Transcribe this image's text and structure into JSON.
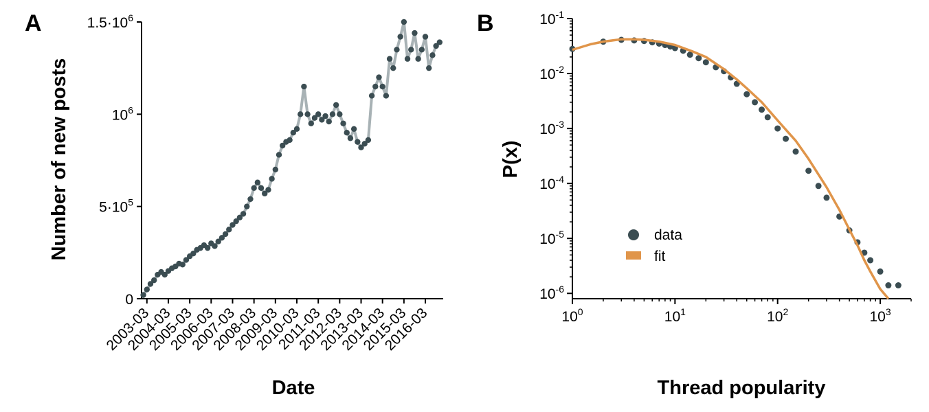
{
  "colors": {
    "marker": "#3b4d52",
    "line": "#a8b2b5",
    "fit": "#e0954a",
    "axis": "#000000"
  },
  "chart_data": [
    {
      "panel": "A",
      "type": "line",
      "xlabel": "Date",
      "ylabel": "Number of new posts",
      "ylim": [
        0,
        1500000
      ],
      "yticks": [
        {
          "value": 0,
          "base": "0",
          "exp": ""
        },
        {
          "value": 500000,
          "base": "5·10",
          "exp": "5"
        },
        {
          "value": 1000000,
          "base": "10",
          "exp": "6"
        },
        {
          "value": 1500000,
          "base": "1.5·10",
          "exp": "6"
        }
      ],
      "xlim": [
        "2002-12",
        "2017-01"
      ],
      "xtick_labels": [
        "2003-03",
        "2004-03",
        "2005-03",
        "2006-03",
        "2007-03",
        "2008-03",
        "2009-03",
        "2010-03",
        "2011-03",
        "2012-03",
        "2013-03",
        "2014-03",
        "2015-03",
        "2016-03"
      ],
      "series": [
        {
          "x": [
            "2003-01",
            "2003-03",
            "2003-05",
            "2003-07",
            "2003-09",
            "2003-11",
            "2004-01",
            "2004-03",
            "2004-05",
            "2004-07",
            "2004-09",
            "2004-11",
            "2005-01",
            "2005-03",
            "2005-05",
            "2005-07",
            "2005-09",
            "2005-11",
            "2006-01",
            "2006-03",
            "2006-05",
            "2006-07",
            "2006-09",
            "2006-11",
            "2007-01",
            "2007-03",
            "2007-05",
            "2007-07",
            "2007-09",
            "2007-11",
            "2008-01",
            "2008-03",
            "2008-05",
            "2008-07",
            "2008-09",
            "2008-11",
            "2009-01",
            "2009-03",
            "2009-05",
            "2009-07",
            "2009-09",
            "2009-11",
            "2010-01",
            "2010-03",
            "2010-05",
            "2010-07",
            "2010-09",
            "2010-11",
            "2011-01",
            "2011-03",
            "2011-05",
            "2011-07",
            "2011-09",
            "2011-11",
            "2012-01",
            "2012-03",
            "2012-05",
            "2012-07",
            "2012-09",
            "2012-11",
            "2013-01",
            "2013-03",
            "2013-05",
            "2013-07",
            "2013-09",
            "2013-11",
            "2014-01",
            "2014-03",
            "2014-05",
            "2014-07",
            "2014-09",
            "2014-11",
            "2015-01",
            "2015-03",
            "2015-05",
            "2015-07",
            "2015-09",
            "2015-11",
            "2016-01",
            "2016-03",
            "2016-05",
            "2016-07",
            "2016-09",
            "2016-11"
          ],
          "values": [
            20000,
            50000,
            80000,
            100000,
            130000,
            145000,
            130000,
            150000,
            165000,
            175000,
            190000,
            185000,
            210000,
            230000,
            245000,
            265000,
            275000,
            290000,
            275000,
            300000,
            285000,
            310000,
            330000,
            350000,
            375000,
            400000,
            420000,
            440000,
            460000,
            500000,
            540000,
            600000,
            630000,
            600000,
            570000,
            590000,
            650000,
            700000,
            780000,
            830000,
            850000,
            860000,
            900000,
            920000,
            1000000,
            1150000,
            1000000,
            950000,
            980000,
            1000000,
            970000,
            990000,
            960000,
            1000000,
            1050000,
            1000000,
            950000,
            900000,
            870000,
            920000,
            850000,
            820000,
            840000,
            860000,
            1100000,
            1150000,
            1200000,
            1150000,
            1100000,
            1300000,
            1250000,
            1350000,
            1420000,
            1500000,
            1300000,
            1350000,
            1440000,
            1300000,
            1350000,
            1420000,
            1250000,
            1320000,
            1370000,
            1390000
          ]
        }
      ]
    },
    {
      "panel": "B",
      "type": "scatter",
      "xlabel": "Thread popularity",
      "ylabel": "P(x)",
      "xscale": "log",
      "yscale": "log",
      "xlim": [
        1,
        2000
      ],
      "ylim": [
        8e-07,
        0.1
      ],
      "xticks": [
        {
          "value": 1,
          "base": "10",
          "exp": "0"
        },
        {
          "value": 10,
          "base": "10",
          "exp": "1"
        },
        {
          "value": 100,
          "base": "10",
          "exp": "2"
        },
        {
          "value": 1000,
          "base": "10",
          "exp": "3"
        }
      ],
      "yticks": [
        {
          "value": 1e-06,
          "base": "10",
          "exp": "-6"
        },
        {
          "value": 1e-05,
          "base": "10",
          "exp": "-5"
        },
        {
          "value": 0.0001,
          "base": "10",
          "exp": "-4"
        },
        {
          "value": 0.001,
          "base": "10",
          "exp": "-3"
        },
        {
          "value": 0.01,
          "base": "10",
          "exp": "-2"
        },
        {
          "value": 0.1,
          "base": "10",
          "exp": "-1"
        }
      ],
      "legend": {
        "position": "center-left",
        "entries": [
          "data",
          "fit"
        ]
      },
      "series": [
        {
          "name": "data",
          "x": [
            1,
            2,
            3,
            4,
            5,
            6,
            7,
            8,
            9,
            10,
            12,
            14,
            17,
            20,
            25,
            30,
            35,
            40,
            50,
            60,
            70,
            80,
            100,
            120,
            150,
            200,
            250,
            300,
            400,
            500,
            600,
            700,
            800,
            1000,
            1200,
            1500
          ],
          "values": [
            0.028,
            0.038,
            0.041,
            0.04,
            0.039,
            0.037,
            0.035,
            0.033,
            0.031,
            0.029,
            0.026,
            0.022,
            0.019,
            0.016,
            0.013,
            0.011,
            0.0085,
            0.0065,
            0.0042,
            0.003,
            0.0022,
            0.0016,
            0.001,
            0.00065,
            0.00038,
            0.00017,
            9e-05,
            5.5e-05,
            2.5e-05,
            1.4e-05,
            8.5e-06,
            5.5e-06,
            4e-06,
            2.5e-06,
            1.4e-06,
            1.4e-06
          ]
        },
        {
          "name": "fit",
          "x": [
            1,
            1.5,
            2,
            3,
            4,
            5,
            7,
            10,
            15,
            20,
            30,
            40,
            50,
            70,
            100,
            150,
            200,
            300,
            400,
            500,
            600,
            700,
            800,
            1000,
            1200
          ],
          "values": [
            0.027,
            0.034,
            0.038,
            0.042,
            0.042,
            0.041,
            0.038,
            0.033,
            0.025,
            0.02,
            0.012,
            0.0078,
            0.0054,
            0.003,
            0.0014,
            0.0006,
            0.00028,
            8.5e-05,
            3.3e-05,
            1.45e-05,
            7.5e-06,
            4e-06,
            2.5e-06,
            1.2e-06,
            8e-07
          ]
        }
      ]
    }
  ]
}
